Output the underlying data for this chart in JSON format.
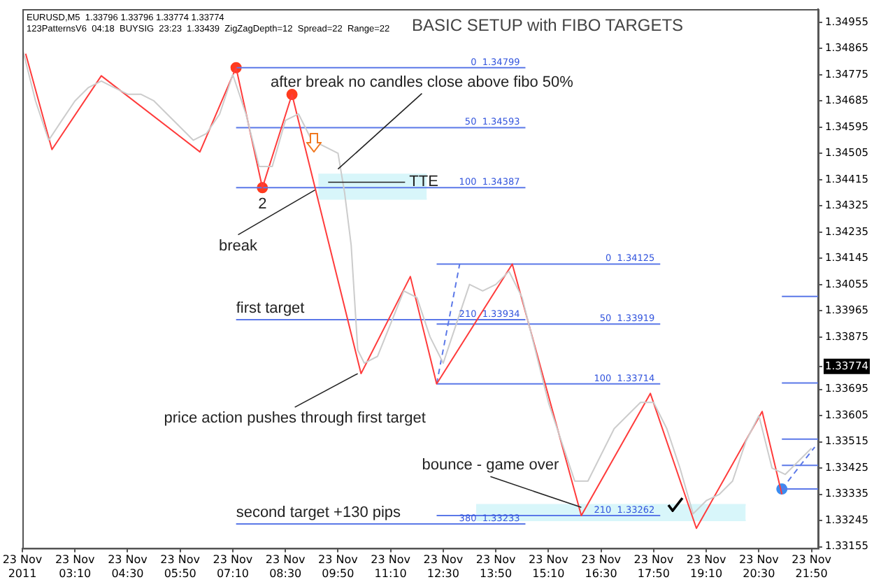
{
  "chart_data": {
    "type": "line",
    "title": "BASIC SETUP with FIBO TARGETS",
    "xlim": [
      "2011-11-23T01:50",
      "2011-11-23T22:00"
    ],
    "ylim": [
      1.3315,
      1.35
    ],
    "xticks": [
      {
        "value": "2011-11-23T01:50",
        "label": "23 Nov 2011"
      },
      {
        "value": "2011-11-23T03:10",
        "label": "23 Nov 03:10"
      },
      {
        "value": "2011-11-23T04:30",
        "label": "23 Nov 04:30"
      },
      {
        "value": "2011-11-23T05:50",
        "label": "23 Nov 05:50"
      },
      {
        "value": "2011-11-23T07:10",
        "label": "23 Nov 07:10"
      },
      {
        "value": "2011-11-23T08:30",
        "label": "23 Nov 08:30"
      },
      {
        "value": "2011-11-23T09:50",
        "label": "23 Nov 09:50"
      },
      {
        "value": "2011-11-23T11:10",
        "label": "23 Nov 11:10"
      },
      {
        "value": "2011-11-23T12:30",
        "label": "23 Nov 12:30"
      },
      {
        "value": "2011-11-23T13:50",
        "label": "23 Nov 13:50"
      },
      {
        "value": "2011-11-23T15:10",
        "label": "23 Nov 15:10"
      },
      {
        "value": "2011-11-23T16:30",
        "label": "23 Nov 16:30"
      },
      {
        "value": "2011-11-23T17:50",
        "label": "23 Nov 17:50"
      },
      {
        "value": "2011-11-23T19:10",
        "label": "23 Nov 19:10"
      },
      {
        "value": "2011-11-23T20:30",
        "label": "23 Nov 20:30"
      },
      {
        "value": "2011-11-23T21:50",
        "label": "23 Nov 21:50"
      }
    ],
    "yticks": [
      1.34955,
      1.34865,
      1.34775,
      1.34685,
      1.34595,
      1.34505,
      1.34415,
      1.34325,
      1.34235,
      1.34145,
      1.34055,
      1.33965,
      1.33875,
      {
        "value": 1.33774,
        "label": "1.33774"
      },
      1.33695,
      1.33605,
      1.33515,
      1.33425,
      1.33335,
      1.33245,
      1.33155
    ],
    "grid": false,
    "legend": false,
    "series": [
      {
        "color": "#cccccc",
        "marker": "none",
        "x": [
          "2011-11-23T01:50",
          "2011-11-23T02:10",
          "2011-11-23T02:30",
          "2011-11-23T02:50",
          "2011-11-23T03:10",
          "2011-11-23T03:30",
          "2011-11-23T03:50",
          "2011-11-23T04:10",
          "2011-11-23T04:30",
          "2011-11-23T04:50",
          "2011-11-23T05:10",
          "2011-11-23T05:30",
          "2011-11-23T05:50",
          "2011-11-23T06:10",
          "2011-11-23T06:30",
          "2011-11-23T06:50",
          "2011-11-23T07:10",
          "2011-11-23T07:30",
          "2011-11-23T07:50",
          "2011-11-23T08:10",
          "2011-11-23T08:30",
          "2011-11-23T08:50",
          "2011-11-23T09:10",
          "2011-11-23T09:30",
          "2011-11-23T09:50",
          "2011-11-23T10:00",
          "2011-11-23T10:10",
          "2011-11-23T10:20",
          "2011-11-23T10:30",
          "2011-11-23T10:50",
          "2011-11-23T11:10",
          "2011-11-23T11:30",
          "2011-11-23T11:50",
          "2011-11-23T12:10",
          "2011-11-23T12:30",
          "2011-11-23T12:50",
          "2011-11-23T13:10",
          "2011-11-23T13:30",
          "2011-11-23T13:50",
          "2011-11-23T14:10",
          "2011-11-23T14:30",
          "2011-11-23T14:50",
          "2011-11-23T15:10",
          "2011-11-23T15:30",
          "2011-11-23T15:50",
          "2011-11-23T16:10",
          "2011-11-23T16:30",
          "2011-11-23T16:50",
          "2011-11-23T17:10",
          "2011-11-23T17:30",
          "2011-11-23T17:50",
          "2011-11-23T18:10",
          "2011-11-23T18:30",
          "2011-11-23T18:50",
          "2011-11-23T19:10",
          "2011-11-23T19:30",
          "2011-11-23T19:50",
          "2011-11-23T20:10",
          "2011-11-23T20:30",
          "2011-11-23T20:50",
          "2011-11-23T21:10",
          "2011-11-23T21:30",
          "2011-11-23T21:50"
        ],
        "values": [
          1.34865,
          1.34685,
          1.3455,
          1.34618,
          1.34685,
          1.3473,
          1.34753,
          1.3473,
          1.34708,
          1.34708,
          1.34685,
          1.3464,
          1.34595,
          1.3455,
          1.34573,
          1.3464,
          1.34775,
          1.3464,
          1.3446,
          1.3446,
          1.34618,
          1.3464,
          1.3455,
          1.34528,
          1.34505,
          1.3437,
          1.3419,
          1.3383,
          1.33785,
          1.33808,
          1.3392,
          1.34033,
          1.3401,
          1.33875,
          1.33785,
          1.3392,
          1.34055,
          1.34033,
          1.34055,
          1.341,
          1.3401,
          1.3383,
          1.3365,
          1.33515,
          1.3338,
          1.3338,
          1.3347,
          1.3356,
          1.33605,
          1.3365,
          1.3365,
          1.3356,
          1.33425,
          1.33268,
          1.33313,
          1.33335,
          1.3338,
          1.33515,
          1.33605,
          1.33425,
          1.33403,
          1.33448,
          1.33493
        ]
      },
      {
        "color": "#ff3b3b",
        "marker": "none",
        "x": [
          "2011-11-23T01:55",
          "2011-11-23T02:35",
          "2011-11-23T03:50",
          "2011-11-23T06:20",
          "2011-11-23T07:15",
          "2011-11-23T07:55",
          "2011-11-23T08:40",
          "2011-11-23T10:25",
          "2011-11-23T11:40",
          "2011-11-23T12:20",
          "2011-11-23T14:15",
          "2011-11-23T16:00",
          "2011-11-23T17:45",
          "2011-11-23T18:55",
          "2011-11-23T20:35",
          "2011-11-23T21:05"
        ],
        "values": [
          1.34847,
          1.34518,
          1.34771,
          1.3451,
          1.34799,
          1.34387,
          1.34707,
          1.33749,
          1.34082,
          1.33714,
          1.34125,
          1.33262,
          1.33681,
          1.33218,
          1.33619,
          1.33335
        ]
      },
      {
        "color": "#d8f6fa",
        "marker": "none",
        "x": [
          "2011-11-23T09:20",
          "2011-11-23T12:05"
        ],
        "values": [
          null,
          null
        ],
        "lower": [
          1.34348,
          1.34348
        ],
        "upper": [
          1.34433,
          1.34433
        ]
      },
      {
        "color": "#d8f6fa",
        "marker": "none",
        "x": [
          "2011-11-23T13:20",
          "2011-11-23T20:10"
        ],
        "values": [
          null,
          null
        ],
        "lower": [
          1.33245,
          1.33245
        ],
        "upper": [
          1.33299,
          1.33299
        ]
      },
      {
        "color": "#5b78e8",
        "marker": "none",
        "x": [
          "2011-11-23T07:15",
          "2011-11-23T14:35"
        ],
        "values": [
          1.34799,
          1.34799
        ]
      },
      {
        "color": "#5b78e8",
        "marker": "none",
        "x": [
          "2011-11-23T07:15",
          "2011-11-23T14:35"
        ],
        "values": [
          1.34593,
          1.34593
        ]
      },
      {
        "color": "#5b78e8",
        "marker": "none",
        "x": [
          "2011-11-23T07:15",
          "2011-11-23T14:35"
        ],
        "values": [
          1.34387,
          1.34387
        ]
      },
      {
        "color": "#5b78e8",
        "marker": "none",
        "x": [
          "2011-11-23T07:15",
          "2011-11-23T14:35"
        ],
        "values": [
          1.33934,
          1.33934
        ]
      },
      {
        "color": "#5b78e8",
        "marker": "none",
        "x": [
          "2011-11-23T07:15",
          "2011-11-23T14:35"
        ],
        "values": [
          1.33233,
          1.33233
        ]
      },
      {
        "color": "#5b78e8",
        "marker": "none",
        "x": [
          "2011-11-23T12:20",
          "2011-11-23T18:00"
        ],
        "values": [
          1.34125,
          1.34125
        ]
      },
      {
        "color": "#5b78e8",
        "marker": "none",
        "x": [
          "2011-11-23T12:20",
          "2011-11-23T18:00"
        ],
        "values": [
          1.33919,
          1.33919
        ]
      },
      {
        "color": "#5b78e8",
        "marker": "none",
        "x": [
          "2011-11-23T12:20",
          "2011-11-23T18:00"
        ],
        "values": [
          1.33714,
          1.33714
        ]
      },
      {
        "color": "#5b78e8",
        "marker": "none",
        "x": [
          "2011-11-23T12:20",
          "2011-11-23T18:00"
        ],
        "values": [
          1.33262,
          1.33262
        ]
      },
      {
        "color": "#5b78e8",
        "marker": "none",
        "x": [
          "2011-11-23T21:05",
          "2011-11-23T22:00"
        ],
        "values": [
          1.34014,
          1.34014
        ]
      },
      {
        "color": "#5b78e8",
        "marker": "none",
        "x": [
          "2011-11-23T21:05",
          "2011-11-23T22:00"
        ],
        "values": [
          1.33717,
          1.33717
        ]
      },
      {
        "color": "#5b78e8",
        "marker": "none",
        "x": [
          "2011-11-23T21:05",
          "2011-11-23T22:00"
        ],
        "values": [
          1.33524,
          1.33524
        ]
      },
      {
        "color": "#5b78e8",
        "marker": "none",
        "x": [
          "2011-11-23T21:05",
          "2011-11-23T22:00"
        ],
        "values": [
          1.33434,
          1.33434
        ]
      },
      {
        "color": "#5b78e8",
        "marker": "none",
        "x": [
          "2011-11-23T21:05",
          "2011-11-23T22:00"
        ],
        "values": [
          1.33353,
          1.33353
        ]
      },
      {
        "color": "#5b78e8",
        "marker": "none",
        "line_style": "dashed",
        "x": [
          "2011-11-23T12:20",
          "2011-11-23T12:55"
        ],
        "values": [
          1.33714,
          1.34125
        ]
      },
      {
        "color": "#5b78e8",
        "marker": "none",
        "line_style": "dashed",
        "x": [
          "2011-11-23T21:05",
          "2011-11-23T21:55"
        ],
        "values": [
          1.33353,
          1.33497
        ]
      },
      {
        "type": "scatter",
        "color": "#ff3b1f",
        "marker": "circle",
        "x": [
          "2011-11-23T07:15",
          "2011-11-23T07:55",
          "2011-11-23T08:40"
        ],
        "values": [
          1.34799,
          1.34387,
          1.34707
        ]
      },
      {
        "type": "scatter",
        "color": "#3b8cf0",
        "marker": "circle",
        "x": [
          "2011-11-23T21:05"
        ],
        "values": [
          1.33353
        ]
      }
    ],
    "annotations": [
      "EURUSD,M5  1.33796 1.33796 1.33774 1.33774",
      "123PatternsV6  04:18  BUYSIG  23:23  1.33439  ZigZagDepth=12  Spread=22  Range=22",
      {
        "text": "after break no candles close above fibo 50%",
        "x": "2011-11-23T09:50",
        "y": 1.34451
      },
      {
        "text": "TTE",
        "x": "2011-11-23T09:35",
        "y": 1.34406
      },
      {
        "text": "break",
        "x": "2011-11-23T09:15",
        "y": 1.34379
      },
      {
        "text": "2",
        "x": "2011-11-23T07:55",
        "y": 1.34387
      },
      {
        "text": "first target",
        "x": "2011-11-23T07:15",
        "y": 1.33934
      },
      {
        "text": "price action pushes through first target",
        "x": "2011-11-23T10:20",
        "y": 1.33749
      },
      {
        "text": "bounce - game over",
        "x": "2011-11-23T16:00",
        "y": 1.3329
      },
      {
        "text": "second target +130 pips",
        "x": "2011-11-23T07:15",
        "y": 1.33233
      },
      {
        "text": "0  1.34799",
        "x": "2011-11-23T14:35",
        "y": 1.34799
      },
      {
        "text": "50  1.34593",
        "x": "2011-11-23T14:35",
        "y": 1.34593
      },
      {
        "text": "100  1.34387",
        "x": "2011-11-23T14:35",
        "y": 1.34387
      },
      {
        "text": "210  1.33934",
        "x": "2011-11-23T14:35",
        "y": 1.33934
      },
      {
        "text": "380  1.33233",
        "x": "2011-11-23T14:35",
        "y": 1.33233
      },
      {
        "text": "0  1.34125",
        "x": "2011-11-23T18:00",
        "y": 1.34125
      },
      {
        "text": "50  1.33919",
        "x": "2011-11-23T18:00",
        "y": 1.33919
      },
      {
        "text": "100  1.33714",
        "x": "2011-11-23T18:00",
        "y": 1.33714
      },
      {
        "text": "210  1.33262",
        "x": "2011-11-23T18:00",
        "y": 1.33262
      }
    ]
  }
}
